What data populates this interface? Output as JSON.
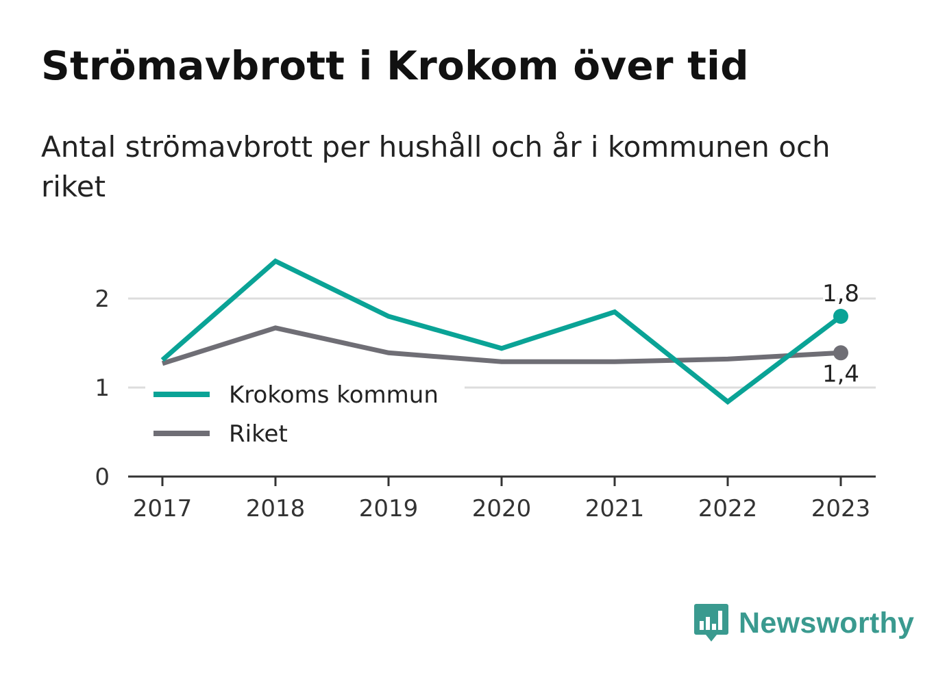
{
  "header": {
    "title": "Strömavbrott i Krokom över tid",
    "subtitle": "Antal strömavbrott per hushåll och år i kommunen och riket"
  },
  "colors": {
    "krokom": "#0aa396",
    "riket": "#6f6e75",
    "grid": "#dddddd",
    "axis": "#333333"
  },
  "chart_data": {
    "type": "line",
    "x": [
      "2017",
      "2018",
      "2019",
      "2020",
      "2021",
      "2022",
      "2023"
    ],
    "series": [
      {
        "name": "Krokoms kommun",
        "color": "#0aa396",
        "values": [
          1.31,
          2.42,
          1.8,
          1.44,
          1.85,
          0.84,
          1.8
        ]
      },
      {
        "name": "Riket",
        "color": "#6f6e75",
        "values": [
          1.27,
          1.67,
          1.39,
          1.29,
          1.29,
          1.32,
          1.39
        ]
      }
    ],
    "yticks": [
      0,
      1,
      2
    ],
    "ylim": [
      0,
      2.6
    ],
    "end_labels": [
      "1,8",
      "1,4"
    ],
    "legend_position": "bottom-left inside",
    "grid": "horizontal"
  },
  "branding": {
    "logo_icon": "newsworthy-chart-bubble-icon",
    "logo_text": "Newsworthy"
  }
}
